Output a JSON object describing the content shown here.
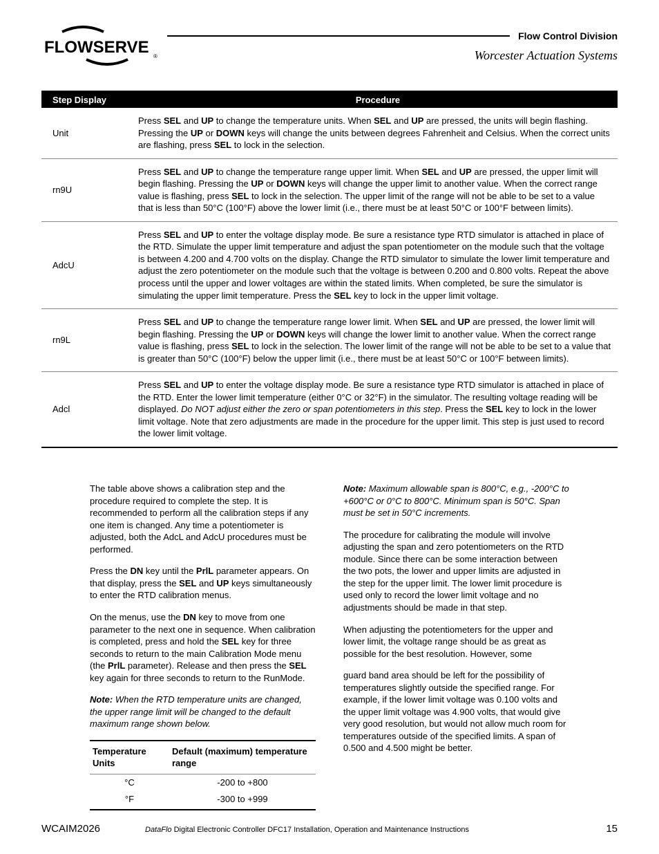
{
  "header": {
    "logo_text": "FLOWSERVE",
    "division": "Flow Control Division",
    "subtitle": "Worcester Actuation Systems"
  },
  "table": {
    "headers": [
      "Step Display",
      "Procedure"
    ],
    "rows": [
      {
        "step": "Unit",
        "procedure": "Press <b>SEL</b> and <b>UP</b> to change the temperature units. When <b>SEL</b> and <b>UP</b> are pressed, the units will begin flashing. Pressing the <b>UP</b> or <b>DOWN</b> keys will change the units between degrees Fahrenheit and Celsius. When the correct units are flashing, press <b>SEL</b> to lock in the selection."
      },
      {
        "step": "rn9U",
        "procedure": "Press <b>SEL</b> and <b>UP</b> to change the temperature range upper limit. When <b>SEL</b> and <b>UP</b> are pressed, the upper limit will begin flashing. Pressing the <b>UP</b> or <b>DOWN</b> keys will change the upper limit to another value. When the correct range value is flashing, press <b>SEL</b> to lock in the selection. The upper limit of the range will not be able to be set to a value that is less than 50°C (100°F) above the lower limit (i.e., there must be at least 50°C or 100°F between limits)."
      },
      {
        "step": "AdcU",
        "procedure": "Press <b>SEL</b> and <b>UP</b> to enter the voltage display mode. Be sure a resistance type RTD simulator is attached in place of the RTD. Simulate the upper limit temperature and adjust the span potentiometer on the module such that the voltage is between 4.200 and 4.700 volts on the display. Change the RTD simulator to simulate the lower limit temperature and adjust the zero potentiometer on the module such that the voltage is between 0.200 and 0.800 volts. Repeat the above process until the upper and lower voltages are within the stated limits. When completed, be sure the simulator is simulating the upper limit temperature. Press the <b>SEL</b> key to lock in the upper limit voltage."
      },
      {
        "step": "rn9L",
        "procedure": "Press <b>SEL</b> and <b>UP</b> to change the temperature range lower limit. When <b>SEL</b> and <b>UP</b> are pressed, the lower limit will begin flashing. Pressing the <b>UP</b> or <b>DOWN</b> keys will change the lower limit to another value. When the correct range value is flashing, press <b>SEL</b> to lock in the selection. The lower limit of the range will not be able to be set to a value that is greater than 50°C (100°F) below the upper limit (i.e., there must be at least 50°C or 100°F between limits)."
      },
      {
        "step": "Adcl",
        "procedure": "Press <b>SEL</b> and <b>UP</b> to enter the voltage display mode. Be sure a resistance type RTD simulator is attached in place of the RTD. Enter the lower limit temperature (either 0°C or 32°F) in the simulator. The resulting voltage reading will be displayed. <i>Do NOT adjust either the zero or span potentiometers in this step</i>. Press the <b>SEL</b> key to lock in the lower limit voltage. Note that zero adjustments are made in the procedure for the upper limit. This step is just used to record the lower limit voltage."
      }
    ]
  },
  "left_col": {
    "p1": "The table above shows a calibration step and the procedure required to complete the step. It is recommended to perform all the calibration steps if any one item is changed. Any time a potentiometer is adjusted, both the AdcL and AdcU procedures must be performed.",
    "p2": "Press the <b>DN</b> key until the <b>PrlL</b> parameter appears. On that display, press the <b>SEL</b> and <b>UP</b> keys simultaneously to enter the RTD calibration menus.",
    "p3": "On the menus, use the <b>DN</b> key to move from one parameter to the next one in sequence. When calibration is completed, press and hold the <b>SEL</b> key for three seconds to return to the main Calibration Mode menu (the <b>PrlL</b> parameter). Release and then press the <b>SEL</b> key again for three seconds to return to the RunMode.",
    "note": "When the RTD temperature units are changed, the upper range limit will be changed to the default maximum range shown below.",
    "note_label": "Note:"
  },
  "units_table": {
    "headers": [
      "Temperature Units",
      "Default (maximum) temperature range"
    ],
    "rows": [
      [
        "°C",
        "-200 to +800"
      ],
      [
        "°F",
        "-300 to +999"
      ]
    ]
  },
  "right_col": {
    "note_label": "Note:",
    "note": "Maximum allowable span is 800°C, e.g., -200°C to +600°C or 0°C to 800°C. Minimum span is 50°C. Span must be set in 50°C increments.",
    "p1": "The procedure for calibrating the module will involve adjusting the span and zero potentiometers on the RTD module. Since there can be some interaction between the two pots, the lower and upper limits are adjusted in the step for the upper limit. The lower limit procedure is used only to record the lower limit voltage and no adjustments should be made in that step.",
    "p2": "When adjusting the potentiometers for the upper and lower limit, the voltage range should be as great as possible for the best resolution. However, some",
    "p3": "guard band area should be left for the possibility of temperatures slightly outside the specified range. For example, if the lower limit voltage was 0.100 volts and the upper limit voltage was 4.900 volts, that would give very good resolution, but would not allow much room for temperatures outside of the specified limits. A span of 0.500 and 4.500 might be better."
  },
  "footer": {
    "doc_id": "WCAIM2026",
    "product": "DataFlo",
    "doc_title": " Digital Electronic Controller DFC17 Installation, Operation and Maintenance Instructions",
    "page": "15"
  }
}
